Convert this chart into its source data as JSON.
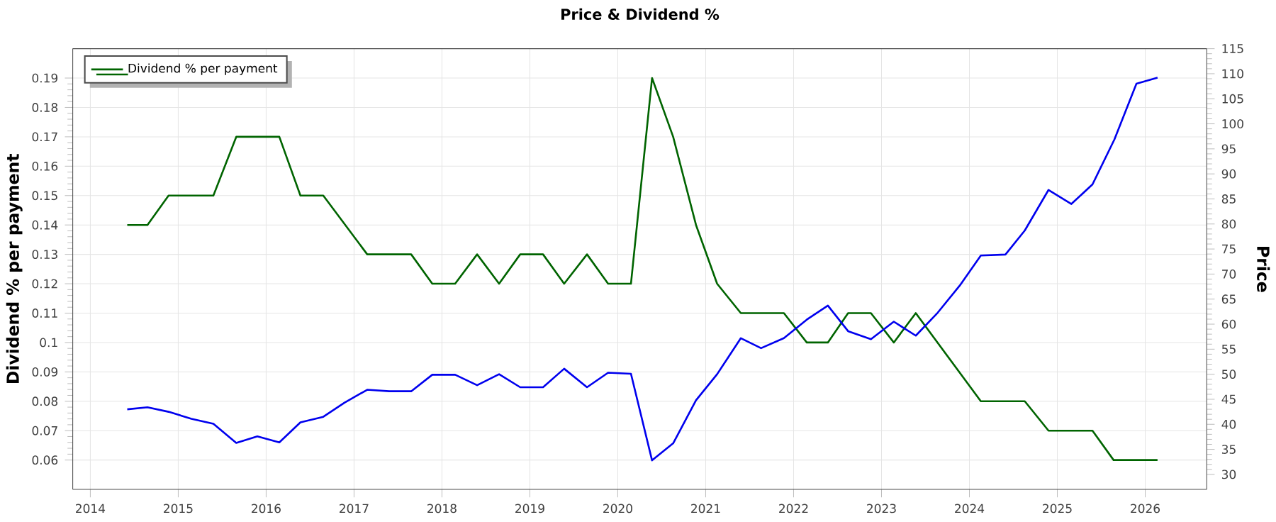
{
  "chart_data": {
    "type": "line",
    "title": "Price & Dividend %",
    "ylabel": "Dividend % per payment",
    "y2label": "Price",
    "xlim": [
      2013.8,
      2026.7
    ],
    "xticks": [
      2014,
      2015,
      2016,
      2017,
      2018,
      2019,
      2020,
      2021,
      2022,
      2023,
      2024,
      2025,
      2026
    ],
    "ylim": [
      0.05,
      0.2
    ],
    "yticks": [
      0.06,
      0.07,
      0.08,
      0.09,
      0.1,
      0.11,
      0.12,
      0.13,
      0.14,
      0.15,
      0.16,
      0.17,
      0.18,
      0.19
    ],
    "y2lim": [
      27,
      115
    ],
    "y2ticks": [
      30,
      35,
      40,
      45,
      50,
      55,
      60,
      65,
      70,
      75,
      80,
      85,
      90,
      95,
      100,
      105,
      110,
      115
    ],
    "grid": true,
    "legend": "top left",
    "marker": "none",
    "line_style": "solid",
    "series": [
      {
        "color": "#0000ee",
        "axis": "y2",
        "x": [
          2014.42,
          2014.65,
          2014.89,
          2015.15,
          2015.4,
          2015.66,
          2015.9,
          2016.15,
          2016.39,
          2016.65,
          2016.89,
          2017.15,
          2017.4,
          2017.65,
          2017.89,
          2018.15,
          2018.4,
          2018.65,
          2018.89,
          2019.15,
          2019.39,
          2019.65,
          2019.89,
          2020.15,
          2020.39,
          2020.63,
          2020.89,
          2021.13,
          2021.4,
          2021.63,
          2021.89,
          2022.15,
          2022.39,
          2022.62,
          2022.88,
          2023.14,
          2023.39,
          2023.64,
          2023.89,
          2024.13,
          2024.41,
          2024.63,
          2024.9,
          2025.16,
          2025.4,
          2025.65,
          2025.9,
          2026.14
        ],
        "values": [
          43.0,
          43.4,
          42.5,
          41.1,
          40.1,
          36.3,
          37.6,
          36.4,
          40.4,
          41.5,
          44.3,
          46.9,
          46.6,
          46.6,
          49.9,
          49.9,
          47.8,
          50.0,
          47.4,
          47.4,
          51.1,
          47.4,
          50.3,
          50.1,
          32.8,
          36.2,
          44.8,
          50.0,
          57.2,
          55.2,
          57.2,
          60.9,
          63.7,
          58.6,
          57.0,
          60.5,
          57.7,
          62.3,
          67.7,
          73.7,
          73.9,
          78.7,
          86.8,
          84.0,
          87.9,
          96.9,
          108.0,
          109.2
        ]
      },
      {
        "name": "Dividend % per payment",
        "color": "#006400",
        "x": [
          2014.42,
          2014.65,
          2014.89,
          2015.4,
          2015.66,
          2016.15,
          2016.39,
          2016.65,
          2017.15,
          2017.65,
          2017.89,
          2018.15,
          2018.4,
          2018.65,
          2018.89,
          2019.15,
          2019.39,
          2019.65,
          2019.89,
          2020.15,
          2020.39,
          2020.63,
          2020.89,
          2021.13,
          2021.4,
          2021.89,
          2022.15,
          2022.39,
          2022.62,
          2022.88,
          2023.14,
          2023.39,
          2024.13,
          2024.63,
          2024.9,
          2025.4,
          2025.64,
          2026.14
        ],
        "values": [
          0.14,
          0.14,
          0.15,
          0.15,
          0.17,
          0.17,
          0.15,
          0.15,
          0.13,
          0.13,
          0.12,
          0.12,
          0.13,
          0.12,
          0.13,
          0.13,
          0.12,
          0.13,
          0.12,
          0.12,
          0.19,
          0.17,
          0.14,
          0.12,
          0.11,
          0.11,
          0.1,
          0.1,
          0.11,
          0.11,
          0.1,
          0.11,
          0.08,
          0.08,
          0.07,
          0.07,
          0.06,
          0.06
        ]
      }
    ]
  }
}
